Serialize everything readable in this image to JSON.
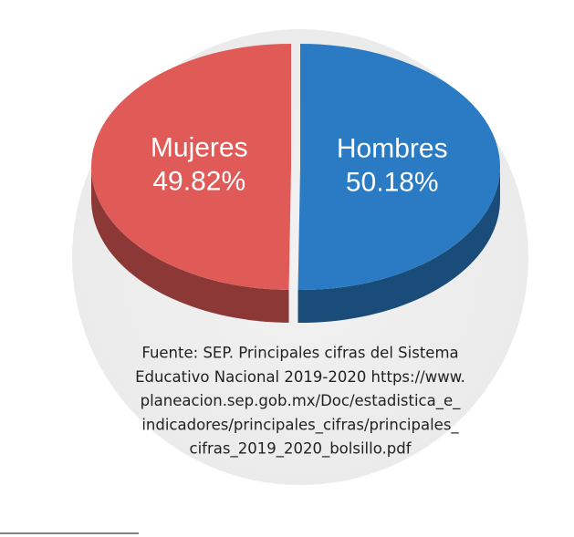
{
  "chart_data": {
    "type": "pie",
    "categories": [
      "Mujeres",
      "Hombres"
    ],
    "values": [
      49.82,
      50.18
    ],
    "value_labels": [
      "49.82%",
      "50.18%"
    ],
    "colors": [
      "#e05a57",
      "#2a7bc4"
    ],
    "source": [
      "Fuente:  SEP. Principales cifras del Sistema",
      "Educativo Nacional 2019-2020 https://www.",
      "planeacion.sep.gob.mx/Doc/estadistica_e_",
      "indicadores/principales_cifras/principales_",
      "cifras_2019_2020_bolsillo.pdf"
    ]
  }
}
